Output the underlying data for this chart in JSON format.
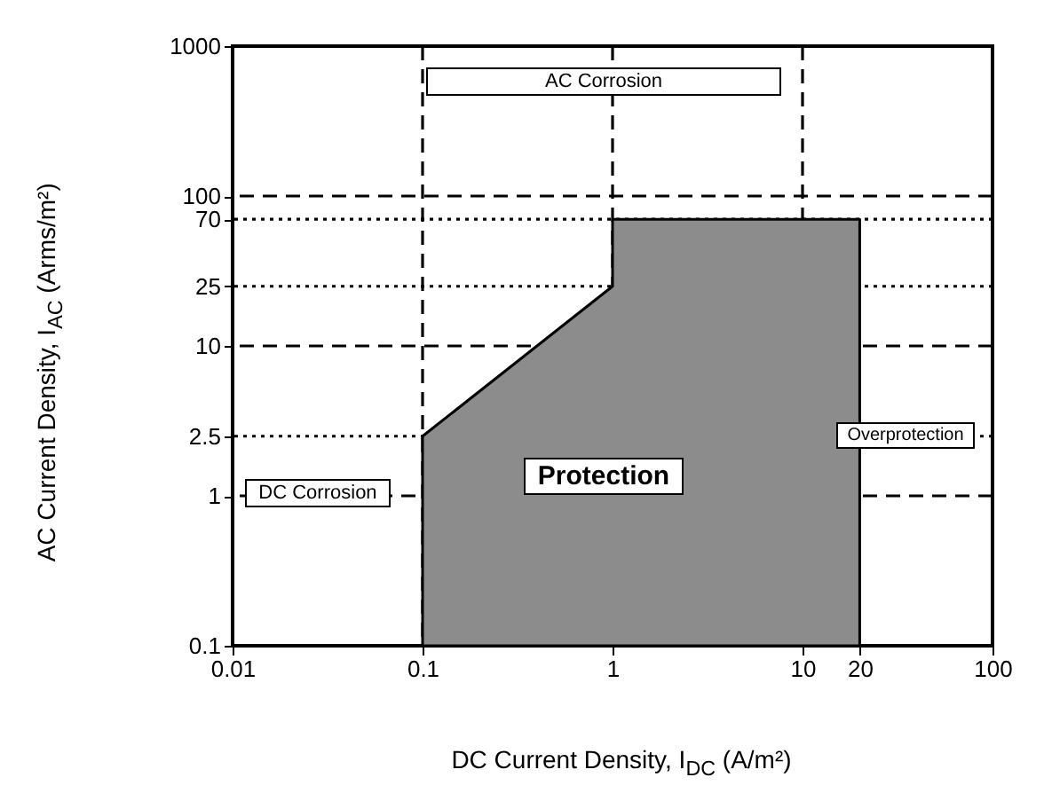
{
  "chart_data": {
    "type": "area",
    "xlabel": "DC Current Density, I$_{DC}$  (A/m²)",
    "ylabel": "AC Current Density, I$_{AC}$  (Arms/m²)",
    "x": [
      0.1,
      1,
      1,
      20
    ],
    "series": [
      {
        "color": "#8c8c8c",
        "values": [
          2.5,
          25,
          70,
          70
        ]
      }
    ],
    "log": "xy",
    "xlim": [
      0.01,
      100
    ],
    "ylim": [
      0.1,
      1000
    ],
    "xticks": [
      0.01,
      0.1,
      1,
      10,
      20,
      100
    ],
    "yticks": [
      0.1,
      1,
      2.5,
      10,
      25,
      70,
      100,
      1000
    ],
    "grid": false,
    "ref_lines": [
      {
        "axis": "x",
        "value": 0.1,
        "line_style": "dashed",
        "color": "#000000"
      },
      {
        "axis": "x",
        "value": 1,
        "line_style": "dashed",
        "color": "#000000"
      },
      {
        "axis": "x",
        "value": 10,
        "line_style": "dashed",
        "color": "#000000"
      },
      {
        "axis": "y",
        "value": 100,
        "line_style": "dashed",
        "color": "#000000"
      },
      {
        "axis": "y",
        "value": 10,
        "line_style": "dashed",
        "color": "#000000"
      },
      {
        "axis": "y",
        "value": 1,
        "line_style": "dashed",
        "color": "#000000"
      },
      {
        "axis": "y",
        "value": 70,
        "line_style": "dotted",
        "color": "#000000"
      },
      {
        "axis": "y",
        "value": 25,
        "line_style": "dotted",
        "color": "#000000"
      },
      {
        "axis": "y",
        "value": 2.5,
        "line_style": "dotted",
        "color": "#000000"
      }
    ],
    "annotations": [
      "AC Corrosion",
      "DC Corrosion",
      "Protection",
      "Overprotection"
    ]
  }
}
